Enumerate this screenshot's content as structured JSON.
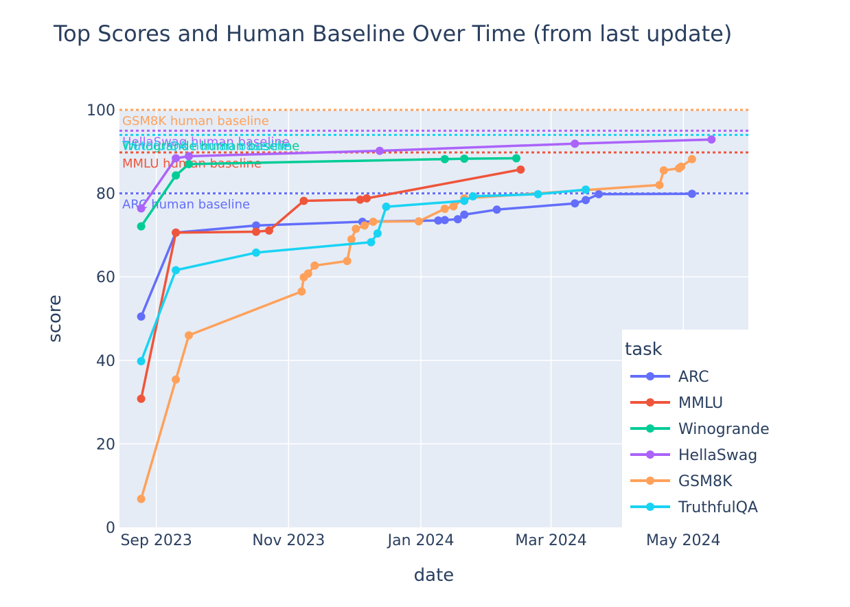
{
  "chart_data": {
    "type": "line",
    "title": "Top Scores and Human Baseline Over Time (from last update)",
    "xlabel": "date",
    "ylabel": "score",
    "xlim": [
      "2023-08-15",
      "2024-05-31"
    ],
    "ylim": [
      0,
      100
    ],
    "x_ticks": [
      {
        "date": "2023-09-01",
        "label": "Sep 2023"
      },
      {
        "date": "2023-11-01",
        "label": "Nov 2023"
      },
      {
        "date": "2024-01-01",
        "label": "Jan 2024"
      },
      {
        "date": "2024-03-01",
        "label": "Mar 2024"
      },
      {
        "date": "2024-05-01",
        "label": "May 2024"
      }
    ],
    "y_ticks": [
      0,
      20,
      40,
      60,
      80,
      100
    ],
    "grid": true,
    "legend": {
      "title": "task",
      "placement": "bottom-right"
    },
    "series": [
      {
        "name": "ARC",
        "color": "#636efa",
        "points": [
          [
            "2023-08-25",
            50.5
          ],
          [
            "2023-09-10",
            70.6
          ],
          [
            "2023-10-17",
            72.3
          ],
          [
            "2023-12-05",
            73.2
          ],
          [
            "2024-01-09",
            73.5
          ],
          [
            "2024-01-12",
            73.6
          ],
          [
            "2024-01-18",
            73.8
          ],
          [
            "2024-01-21",
            74.9
          ],
          [
            "2024-02-05",
            76.1
          ],
          [
            "2024-03-12",
            77.6
          ],
          [
            "2024-03-17",
            78.4
          ],
          [
            "2024-03-23",
            79.8
          ],
          [
            "2024-05-05",
            79.9
          ]
        ]
      },
      {
        "name": "MMLU",
        "color": "#ef553b",
        "points": [
          [
            "2023-08-25",
            30.8
          ],
          [
            "2023-09-10",
            70.6
          ],
          [
            "2023-10-17",
            70.8
          ],
          [
            "2023-10-23",
            71.1
          ],
          [
            "2023-11-08",
            78.2
          ],
          [
            "2023-12-04",
            78.5
          ],
          [
            "2023-12-07",
            78.8
          ],
          [
            "2024-02-16",
            85.7
          ]
        ]
      },
      {
        "name": "Winogrande",
        "color": "#00cc96",
        "points": [
          [
            "2023-08-25",
            72.1
          ],
          [
            "2023-09-10",
            84.3
          ],
          [
            "2023-09-16",
            87.0
          ],
          [
            "2024-01-12",
            88.2
          ],
          [
            "2024-01-21",
            88.3
          ],
          [
            "2024-02-14",
            88.4
          ]
        ]
      },
      {
        "name": "HellaSwag",
        "color": "#ab63fa",
        "points": [
          [
            "2023-08-25",
            76.4
          ],
          [
            "2023-09-10",
            88.4
          ],
          [
            "2023-09-16",
            88.9
          ],
          [
            "2023-12-13",
            90.2
          ],
          [
            "2024-03-12",
            91.9
          ],
          [
            "2024-05-14",
            92.9
          ]
        ]
      },
      {
        "name": "GSM8K",
        "color": "#ffa15a",
        "points": [
          [
            "2023-08-25",
            6.8
          ],
          [
            "2023-09-10",
            35.4
          ],
          [
            "2023-09-16",
            46.0
          ],
          [
            "2023-11-07",
            56.5
          ],
          [
            "2023-11-08",
            59.9
          ],
          [
            "2023-11-10",
            60.8
          ],
          [
            "2023-11-13",
            62.7
          ],
          [
            "2023-11-28",
            63.8
          ],
          [
            "2023-11-30",
            69.0
          ],
          [
            "2023-12-02",
            71.5
          ],
          [
            "2023-12-06",
            72.3
          ],
          [
            "2023-12-10",
            73.2
          ],
          [
            "2023-12-31",
            73.3
          ],
          [
            "2024-01-12",
            76.3
          ],
          [
            "2024-01-16",
            76.9
          ],
          [
            "2024-01-21",
            78.8
          ],
          [
            "2024-04-20",
            82.0
          ],
          [
            "2024-04-22",
            85.5
          ],
          [
            "2024-04-29",
            86.0
          ],
          [
            "2024-04-30",
            86.4
          ],
          [
            "2024-05-05",
            88.2
          ]
        ]
      },
      {
        "name": "TruthfulQA",
        "color": "#19d3f3",
        "points": [
          [
            "2023-08-25",
            39.8
          ],
          [
            "2023-09-10",
            61.6
          ],
          [
            "2023-10-17",
            65.8
          ],
          [
            "2023-12-09",
            68.3
          ],
          [
            "2023-12-12",
            70.4
          ],
          [
            "2023-12-16",
            76.8
          ],
          [
            "2024-01-21",
            78.2
          ],
          [
            "2024-01-25",
            79.3
          ],
          [
            "2024-02-24",
            79.8
          ],
          [
            "2024-03-17",
            80.9
          ]
        ]
      }
    ],
    "baselines": [
      {
        "task": "GSM8K",
        "label": "GSM8K human baseline",
        "value": 100,
        "color": "#ffa15a"
      },
      {
        "task": "HellaSwag",
        "label": "HellaSwag human baseline",
        "value": 95,
        "color": "#ab63fa"
      },
      {
        "task": "Winogrande",
        "label": "Winogrande human baseline",
        "value": 94,
        "color": "#00cc96"
      },
      {
        "task": "TruthfulQA",
        "label": "TruthfulQA human baseline",
        "value": 94,
        "color": "#19d3f3"
      },
      {
        "task": "MMLU",
        "label": "MMLU human baseline",
        "value": 89.8,
        "color": "#ef553b"
      },
      {
        "task": "ARC",
        "label": "ARC human baseline",
        "value": 80,
        "color": "#636efa"
      }
    ]
  }
}
